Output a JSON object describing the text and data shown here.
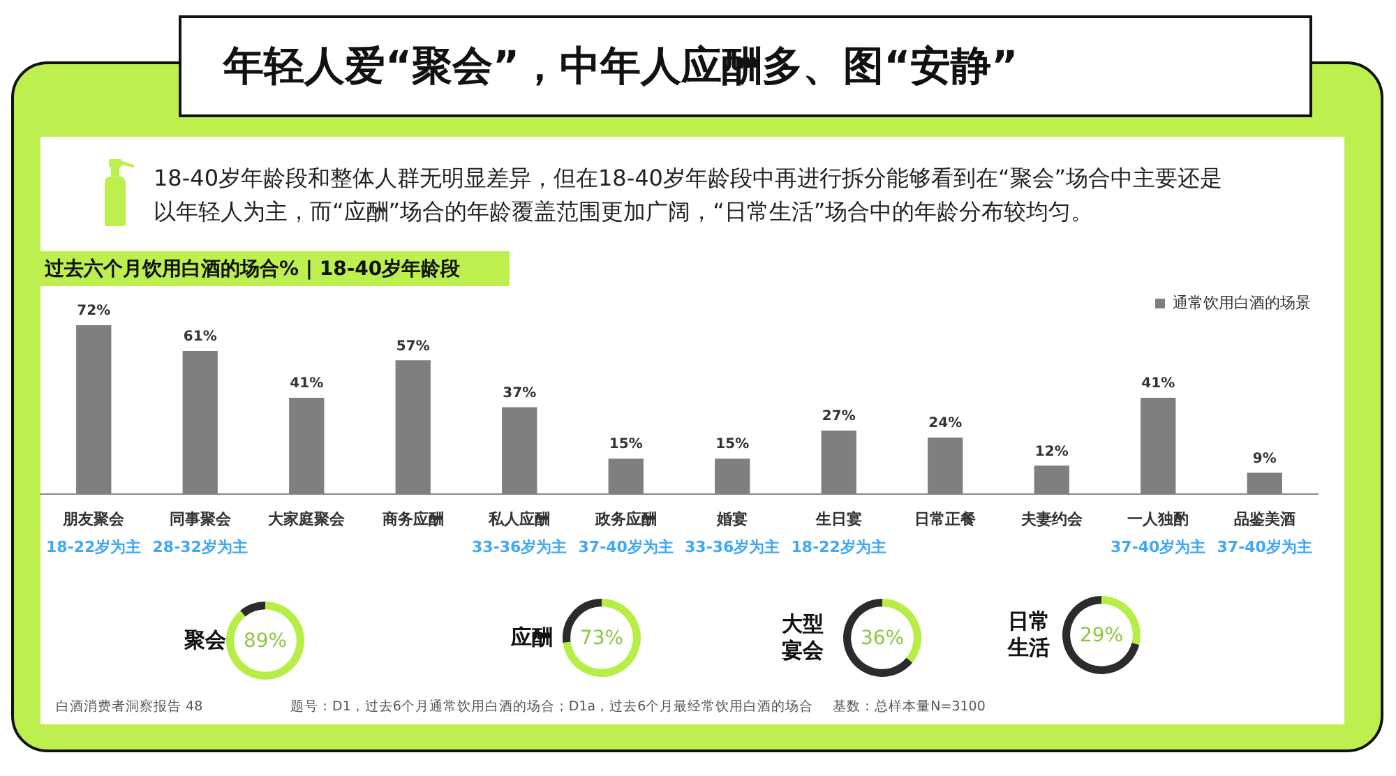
{
  "chart_data": [
    {
      "type": "other",
      "title": "年轻人爱“聚会”，中年人应酬多、图“安静”",
      "subtitle": "18-40岁年龄段和整体人群无明显差异，但在18-40岁年龄段中再进行拆分能够看到在“聚会”场合中主要还是以年轻人为主，而“应酬”场合的年龄覆盖范围更加广阔，“日常生活”场合中的年龄分布较均匀。",
      "annotations": [
        "白酒消费者洞察报告 48",
        "题号：D1，过去6个月通常饮用白酒的场合；D1a，过去6个月最经常饮用白酒的场合",
        "基数：总样本量N=3100"
      ]
    },
    {
      "type": "bar",
      "title": "过去六个月饮用白酒的场合% | 18-40岁年龄段",
      "categories": [
        "朋友聚会",
        "同事聚会",
        "大家庭聚会",
        "商务应酬",
        "私人应酬",
        "政务应酬",
        "婚宴",
        "生日宴",
        "日常正餐",
        "夫妻约会",
        "一人独酌",
        "品鉴美酒"
      ],
      "series": [
        {
          "name": "通常饮用白酒的场景",
          "color": "#7f7f7f",
          "values": [
            72,
            61,
            41,
            57,
            37,
            15,
            15,
            27,
            24,
            12,
            41,
            9
          ],
          "value_labels": [
            "72%",
            "61%",
            "41%",
            "57%",
            "37%",
            "15%",
            "15%",
            "27%",
            "24%",
            "12%",
            "41%",
            "9%"
          ]
        }
      ],
      "legend": "top right",
      "annotations": [
        "18-22岁为主",
        "28-32岁为主",
        "33-36岁为主",
        "37-40岁为主",
        "33-36岁为主",
        "18-22岁为主",
        "37-40岁为主",
        "37-40岁为主"
      ]
    },
    {
      "type": "donut",
      "title": "聚会",
      "categories": [
        null,
        null
      ],
      "values": [
        89,
        11
      ],
      "colors": [
        "#b6ee46",
        "#2b2b2b"
      ],
      "annotations": [
        "89%"
      ]
    },
    {
      "type": "donut",
      "title": "应酬",
      "categories": [
        null,
        null
      ],
      "values": [
        73,
        27
      ],
      "colors": [
        "#b6ee46",
        "#2b2b2b"
      ],
      "annotations": [
        "73%"
      ]
    },
    {
      "type": "donut",
      "title": "大型宴会",
      "categories": [
        null,
        null
      ],
      "values": [
        36,
        64
      ],
      "colors": [
        "#b6ee46",
        "#2b2b2b"
      ],
      "annotations": [
        "36%"
      ]
    },
    {
      "type": "donut",
      "title": "日常生活",
      "categories": [
        null,
        null
      ],
      "values": [
        29,
        71
      ],
      "colors": [
        "#b6ee46",
        "#2b2b2b"
      ],
      "annotations": [
        "29%"
      ]
    }
  ]
}
